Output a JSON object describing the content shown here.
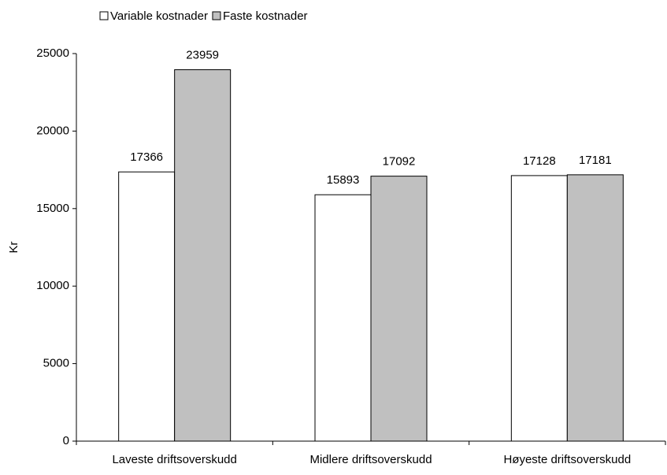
{
  "chart_data": {
    "type": "bar",
    "categories": [
      "Laveste driftsoverskudd",
      "Midlere driftsoverskudd",
      "Høyeste driftsoverskudd"
    ],
    "series": [
      {
        "name": "Variable kostnader",
        "color": "#ffffff",
        "values": [
          17366,
          15893,
          17128
        ]
      },
      {
        "name": "Faste kostnader",
        "color": "#c0c0c0",
        "values": [
          23959,
          17092,
          17181
        ]
      }
    ],
    "y_label": "Kr",
    "ylim": [
      0,
      25000
    ],
    "yticks": [
      0,
      5000,
      10000,
      15000,
      20000,
      25000
    ],
    "grid": false,
    "legend": "top"
  }
}
